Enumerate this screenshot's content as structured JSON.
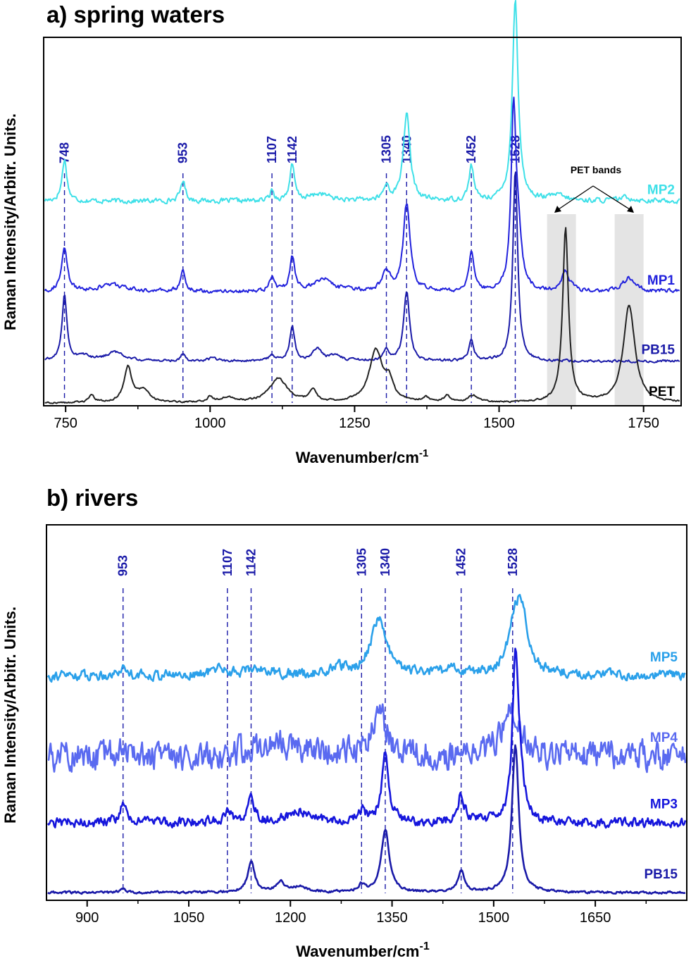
{
  "chart_data": [
    {
      "type": "line",
      "title": "a) spring waters",
      "xlabel": "Wavenumber/cm",
      "xlabel_sup": "-1",
      "ylabel": "Raman Intensity/Arbitr. Units.",
      "xlim": [
        712,
        1815
      ],
      "xticks": [
        750,
        1000,
        1250,
        1500,
        1750
      ],
      "xtick_labels": [
        "750",
        "1000",
        "1250",
        "1500",
        "1750"
      ],
      "peak_markers": [
        748,
        953,
        1107,
        1142,
        1305,
        1340,
        1452,
        1528
      ],
      "peak_labels": [
        "748",
        "953",
        "1107",
        "1142",
        "1305",
        "1340",
        "1452",
        "1528"
      ],
      "shaded_bands": [
        [
          1583,
          1633
        ],
        [
          1700,
          1750
        ]
      ],
      "annotation": "PET bands",
      "series": [
        {
          "name": "MP2",
          "color": "#3ee0e8",
          "baseline": 0.58,
          "noise": 0.006,
          "peaks": [
            [
              748,
              0.12,
              5
            ],
            [
              953,
              0.06,
              5
            ],
            [
              1107,
              0.03,
              4
            ],
            [
              1142,
              0.1,
              5
            ],
            [
              1190,
              0.02,
              20
            ],
            [
              1305,
              0.04,
              6
            ],
            [
              1340,
              0.25,
              7
            ],
            [
              1452,
              0.1,
              5
            ],
            [
              1528,
              0.58,
              6
            ],
            [
              1600,
              0.015,
              15
            ],
            [
              1720,
              0.01,
              15
            ]
          ]
        },
        {
          "name": "MP1",
          "color": "#2222dd",
          "baseline": 0.32,
          "noise": 0.005,
          "peaks": [
            [
              748,
              0.12,
              6
            ],
            [
              830,
              0.02,
              25
            ],
            [
              953,
              0.06,
              5
            ],
            [
              1107,
              0.04,
              5
            ],
            [
              1142,
              0.1,
              5
            ],
            [
              1195,
              0.035,
              20
            ],
            [
              1305,
              0.06,
              8
            ],
            [
              1340,
              0.25,
              7
            ],
            [
              1452,
              0.11,
              5
            ],
            [
              1525,
              0.5,
              5
            ],
            [
              1533,
              0.14,
              7
            ],
            [
              1615,
              0.06,
              8
            ],
            [
              1725,
              0.04,
              12
            ]
          ]
        },
        {
          "name": "PB15",
          "color": "#1a1aa8",
          "baseline": 0.12,
          "noise": 0.003,
          "peaks": [
            [
              748,
              0.19,
              5
            ],
            [
              780,
              0.015,
              12
            ],
            [
              835,
              0.025,
              20
            ],
            [
              953,
              0.02,
              5
            ],
            [
              1005,
              0.01,
              8
            ],
            [
              1107,
              0.02,
              5
            ],
            [
              1142,
              0.1,
              5
            ],
            [
              1185,
              0.035,
              8
            ],
            [
              1215,
              0.015,
              15
            ],
            [
              1305,
              0.03,
              6
            ],
            [
              1340,
              0.2,
              6
            ],
            [
              1452,
              0.06,
              5
            ],
            [
              1528,
              0.55,
              5
            ]
          ]
        },
        {
          "name": "PET",
          "color": "#222222",
          "baseline": 0.0,
          "noise": 0.002,
          "peaks": [
            [
              795,
              0.02,
              6
            ],
            [
              858,
              0.1,
              8
            ],
            [
              885,
              0.035,
              12
            ],
            [
              1000,
              0.015,
              5
            ],
            [
              1030,
              0.015,
              15
            ],
            [
              1118,
              0.07,
              18
            ],
            [
              1178,
              0.035,
              7
            ],
            [
              1287,
              0.15,
              14
            ],
            [
              1310,
              0.05,
              8
            ],
            [
              1373,
              0.015,
              6
            ],
            [
              1410,
              0.02,
              6
            ],
            [
              1455,
              0.02,
              10
            ],
            [
              1615,
              0.5,
              6
            ],
            [
              1725,
              0.28,
              12
            ]
          ]
        }
      ]
    },
    {
      "type": "line",
      "title": "b) rivers",
      "xlabel": "Wavenumber/cm",
      "xlabel_sup": "-1",
      "ylabel": "Raman Intensity/Arbitr. Units.",
      "xlim": [
        840,
        1785
      ],
      "xticks": [
        900,
        1050,
        1200,
        1350,
        1500,
        1650
      ],
      "xtick_labels": [
        "900",
        "1050",
        "1200",
        "1350",
        "1500",
        "1650"
      ],
      "peak_markers": [
        953,
        1107,
        1142,
        1305,
        1340,
        1452,
        1528
      ],
      "peak_labels": [
        "953",
        "1107",
        "1142",
        "1305",
        "1340",
        "1452",
        "1528"
      ],
      "series": [
        {
          "name": "MP5",
          "color": "#2aa0ea",
          "baseline": 0.62,
          "noise": 0.012,
          "peaks": [
            [
              953,
              0.02,
              8
            ],
            [
              1095,
              0.02,
              12
            ],
            [
              1150,
              0.02,
              20
            ],
            [
              1270,
              0.02,
              12
            ],
            [
              1330,
              0.16,
              14
            ],
            [
              1440,
              0.015,
              20
            ],
            [
              1528,
              0.08,
              8
            ],
            [
              1540,
              0.2,
              12
            ]
          ]
        },
        {
          "name": "MP4",
          "color": "#5a6af0",
          "baseline": 0.39,
          "noise": 0.035,
          "peaks": [
            [
              953,
              0.05,
              6
            ],
            [
              1180,
              0.04,
              40
            ],
            [
              1330,
              0.13,
              14
            ],
            [
              1525,
              0.15,
              14
            ]
          ]
        },
        {
          "name": "MP3",
          "color": "#1616dc",
          "baseline": 0.2,
          "noise": 0.012,
          "peaks": [
            [
              953,
              0.05,
              6
            ],
            [
              1107,
              0.03,
              6
            ],
            [
              1142,
              0.07,
              6
            ],
            [
              1215,
              0.03,
              20
            ],
            [
              1305,
              0.03,
              8
            ],
            [
              1340,
              0.2,
              6
            ],
            [
              1452,
              0.08,
              6
            ],
            [
              1532,
              0.42,
              5
            ],
            [
              1538,
              0.12,
              8
            ]
          ]
        },
        {
          "name": "PB15",
          "color": "#1a1aa8",
          "baseline": 0.0,
          "noise": 0.003,
          "peaks": [
            [
              953,
              0.01,
              5
            ],
            [
              1142,
              0.09,
              6
            ],
            [
              1185,
              0.03,
              7
            ],
            [
              1215,
              0.015,
              15
            ],
            [
              1305,
              0.02,
              6
            ],
            [
              1340,
              0.18,
              7
            ],
            [
              1452,
              0.06,
              6
            ],
            [
              1532,
              0.42,
              6
            ]
          ]
        }
      ]
    }
  ]
}
